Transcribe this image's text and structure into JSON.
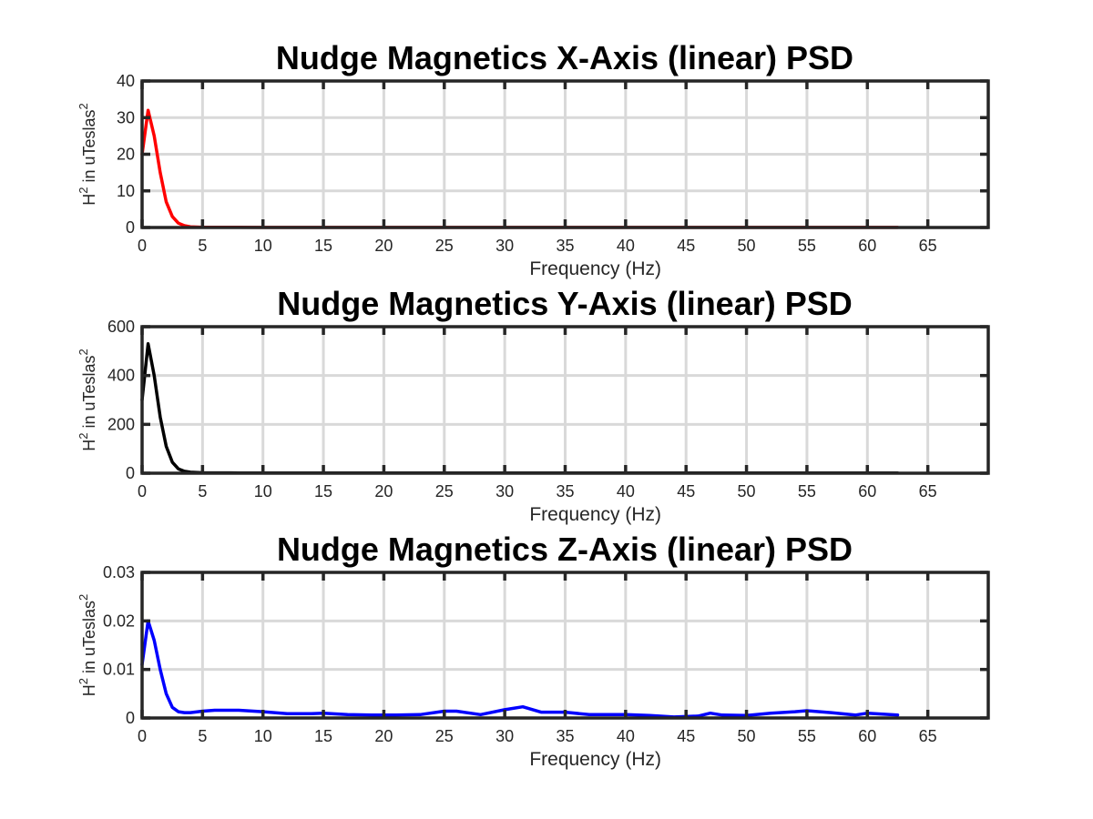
{
  "colors": {
    "x_series": "#ff0000",
    "y_series": "#000000",
    "z_series": "#0000ff"
  },
  "chart_data": [
    {
      "type": "line",
      "title": "Nudge Magnetics X-Axis (linear) PSD",
      "xlabel": "Frequency (Hz)",
      "ylabel_base": "H",
      "ylabel_mid": " in uTeslas",
      "ylabel_sup": "2",
      "xlim": [
        0,
        70
      ],
      "ylim": [
        0,
        40
      ],
      "xticks": [
        0,
        5,
        10,
        15,
        20,
        25,
        30,
        35,
        40,
        45,
        50,
        55,
        60,
        65
      ],
      "yticks": [
        0,
        10,
        20,
        30,
        40
      ],
      "ytick_labels": [
        "0",
        "10",
        "20",
        "30",
        "40"
      ],
      "grid": true,
      "series": [
        {
          "color": "#ff0000",
          "x": [
            0,
            0.5,
            1,
            1.5,
            2,
            2.5,
            3,
            3.5,
            4,
            5,
            6,
            8,
            10,
            20,
            30,
            40,
            50,
            62.5
          ],
          "y": [
            20,
            32,
            25,
            15,
            7,
            3,
            1.2,
            0.5,
            0.2,
            0.08,
            0.05,
            0.04,
            0.03,
            0.02,
            0.02,
            0.02,
            0.02,
            0.02
          ]
        }
      ]
    },
    {
      "type": "line",
      "title": "Nudge Magnetics Y-Axis (linear) PSD",
      "xlabel": "Frequency (Hz)",
      "ylabel_base": "H",
      "ylabel_mid": " in uTeslas",
      "ylabel_sup": "2",
      "xlim": [
        0,
        70
      ],
      "ylim": [
        0,
        600
      ],
      "xticks": [
        0,
        5,
        10,
        15,
        20,
        25,
        30,
        35,
        40,
        45,
        50,
        55,
        60,
        65
      ],
      "yticks": [
        0,
        200,
        400,
        600
      ],
      "ytick_labels": [
        "0",
        "200",
        "400",
        "600"
      ],
      "grid": true,
      "series": [
        {
          "color": "#000000",
          "x": [
            0,
            0.5,
            1,
            1.5,
            2,
            2.5,
            3,
            3.5,
            4,
            5,
            6,
            8,
            10,
            20,
            30,
            40,
            50,
            62.5
          ],
          "y": [
            300,
            530,
            400,
            230,
            110,
            45,
            18,
            8,
            4,
            2,
            1.5,
            1,
            1,
            0.8,
            0.8,
            0.8,
            0.8,
            0.8
          ]
        }
      ]
    },
    {
      "type": "line",
      "title": "Nudge Magnetics Z-Axis (linear) PSD",
      "xlabel": "Frequency (Hz)",
      "ylabel_base": "H",
      "ylabel_mid": " in uTeslas",
      "ylabel_sup": "2",
      "xlim": [
        0,
        70
      ],
      "ylim": [
        0,
        0.03
      ],
      "xticks": [
        0,
        5,
        10,
        15,
        20,
        25,
        30,
        35,
        40,
        45,
        50,
        55,
        60,
        65
      ],
      "yticks": [
        0,
        0.01,
        0.02,
        0.03
      ],
      "ytick_labels": [
        "0",
        "0.01",
        "0.02",
        "0.03"
      ],
      "grid": true,
      "series": [
        {
          "color": "#0000ff",
          "x": [
            0,
            0.5,
            1,
            1.5,
            2,
            2.5,
            3,
            3.5,
            4,
            5,
            6,
            8,
            10,
            12,
            14,
            15,
            17,
            19,
            21,
            23,
            25,
            26,
            28,
            30,
            31.5,
            33,
            35,
            37,
            40,
            42,
            44,
            46,
            47,
            48,
            50,
            52,
            54,
            55,
            57,
            59,
            60,
            62.5
          ],
          "y": [
            0.011,
            0.02,
            0.016,
            0.01,
            0.005,
            0.0022,
            0.0013,
            0.0011,
            0.0011,
            0.0014,
            0.0016,
            0.0016,
            0.0013,
            0.0009,
            0.0009,
            0.001,
            0.0007,
            0.0006,
            0.0006,
            0.0007,
            0.0014,
            0.0014,
            0.0007,
            0.0017,
            0.0023,
            0.0012,
            0.0012,
            0.0007,
            0.0007,
            0.0005,
            0.0002,
            0.0004,
            0.001,
            0.0006,
            0.0005,
            0.001,
            0.0013,
            0.0015,
            0.0011,
            0.0006,
            0.001,
            0.0006
          ]
        }
      ]
    }
  ]
}
